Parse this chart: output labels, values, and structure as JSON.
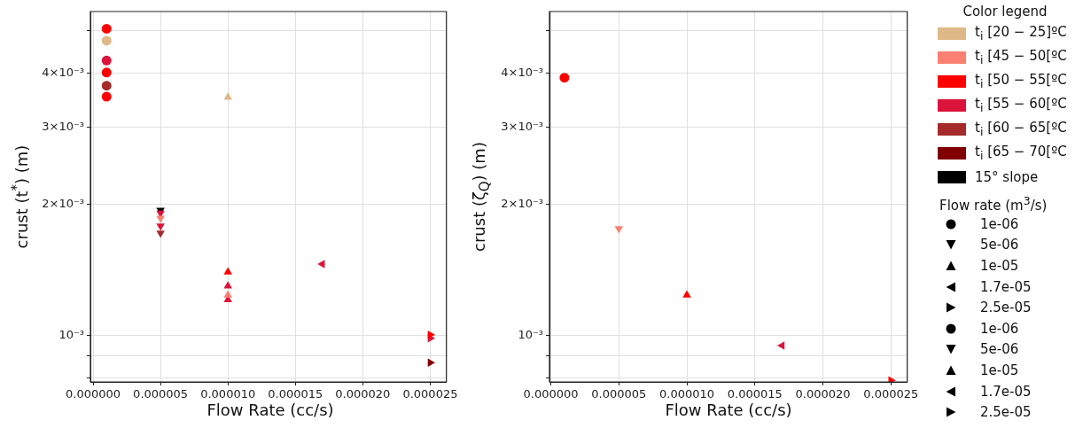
{
  "chart_data": [
    {
      "type": "scatter",
      "xlabel": "Flow Rate (cc/s)",
      "ylabel": "crust (t$^{*}$) (m)",
      "log": "y",
      "grid": true,
      "legend": "right",
      "legend_title": "Color legend",
      "xlim": [
        -2e-07,
        2.62e-05
      ],
      "xticks": [
        {
          "value": 0,
          "label": "0.000000"
        },
        {
          "value": 5e-06,
          "label": "0.000005"
        },
        {
          "value": 1e-05,
          "label": "0.000010"
        },
        {
          "value": 1.5e-05,
          "label": "0.000015"
        },
        {
          "value": 2e-05,
          "label": "0.000020"
        },
        {
          "value": 2.5e-05,
          "label": "0.000025"
        }
      ],
      "ylim": [
        0.000784,
        0.00553
      ],
      "yticks": [
        {
          "value": 0.0008,
          "label": null
        },
        {
          "value": 0.0009,
          "label": null
        },
        {
          "value": 0.001,
          "label": "10⁻³"
        },
        {
          "value": 0.002,
          "label": "2×10⁻³"
        },
        {
          "value": 0.003,
          "label": "3×10⁻³"
        },
        {
          "value": 0.004,
          "label": "4×10⁻³"
        },
        {
          "value": 0.005,
          "label": null
        }
      ],
      "annotations": [
        "Flow rate (m$^{3}$/s)",
        "1e-06",
        "5e-06",
        "1e-05",
        "1.7e-05",
        "2.5e-05",
        "1e-06",
        "5e-06",
        "1e-05",
        "1.7e-05",
        "2.5e-05"
      ],
      "series": [
        {
          "name": "t$_{i}$ [20 − 25]ºC",
          "color": "#deb887",
          "marker": "circle",
          "x": [
            1e-06
          ],
          "values": [
            0.00474
          ]
        },
        {
          "color": "#deb887",
          "marker": "triangle",
          "x": [
            1e-05
          ],
          "values": [
            0.00352
          ]
        },
        {
          "name": "t$_{i}$ [45 − 50[ºC",
          "color": "#fa8072",
          "marker": "triangle-down",
          "x": [
            5e-06
          ],
          "values": [
            0.00186
          ]
        },
        {
          "color": "#fa8072",
          "marker": "triangle",
          "x": [
            1e-05
          ],
          "values": [
            0.00124
          ]
        },
        {
          "name": "t$_{i}$ [50 − 55[ºC",
          "color": "#ff0000",
          "marker": "circle",
          "x": [
            1e-06,
            1e-06,
            1e-06
          ],
          "values": [
            0.00505,
            0.00401,
            0.00353
          ]
        },
        {
          "color": "#ff0000",
          "marker": "triangle",
          "x": [
            1e-05
          ],
          "values": [
            0.0014
          ]
        },
        {
          "color": "#ff0000",
          "marker": "triangle-right",
          "x": [
            2.5e-05
          ],
          "values": [
            0.001006
          ]
        },
        {
          "name": "t$_{i}$ [55 − 60[ºC",
          "color": "#dc143c",
          "marker": "circle",
          "x": [
            1e-06
          ],
          "values": [
            0.00427
          ]
        },
        {
          "color": "#dc143c",
          "marker": "triangle-down",
          "x": [
            5e-06,
            5e-06
          ],
          "values": [
            0.00191,
            0.001785
          ]
        },
        {
          "color": "#dc143c",
          "marker": "triangle",
          "x": [
            1e-05,
            1e-05
          ],
          "values": [
            0.0013,
            0.00121
          ]
        },
        {
          "color": "#dc143c",
          "marker": "triangle-left",
          "x": [
            1.7e-05
          ],
          "values": [
            0.00146
          ]
        },
        {
          "color": "#dc143c",
          "marker": "triangle-right",
          "x": [
            2.5e-05
          ],
          "values": [
            0.000987
          ]
        },
        {
          "name": "t$_{i}$ [60 − 65[ºC",
          "color": "#a52a2a",
          "marker": "circle",
          "x": [
            1e-06
          ],
          "values": [
            0.00374
          ]
        },
        {
          "color": "#a52a2a",
          "marker": "triangle-down",
          "x": [
            5e-06
          ],
          "values": [
            0.00172
          ]
        },
        {
          "name": "t$_{i}$ [65 − 70[ºC",
          "color": "#800000",
          "marker": "triangle-right",
          "x": [
            2.5e-05
          ],
          "values": [
            0.000868
          ]
        },
        {
          "name": "15° slope",
          "color": "#000000",
          "marker": "triangle-down",
          "x": [
            5e-06
          ],
          "values": [
            0.00194
          ]
        }
      ]
    },
    {
      "type": "scatter",
      "xlabel": "Flow Rate (cc/s)",
      "ylabel": "crust (ζ$_{Q}$) (m)",
      "log": "y",
      "grid": true,
      "xlim": [
        -1e-07,
        2.62e-05
      ],
      "xticks": [
        {
          "value": 0,
          "label": "0.000000"
        },
        {
          "value": 5e-06,
          "label": "0.000005"
        },
        {
          "value": 1e-05,
          "label": "0.000010"
        },
        {
          "value": 1.5e-05,
          "label": "0.000015"
        },
        {
          "value": 2e-05,
          "label": "0.000020"
        },
        {
          "value": 2.5e-05,
          "label": "0.000025"
        }
      ],
      "ylim": [
        0.000784,
        0.00553
      ],
      "yticks": [
        {
          "value": 0.0008,
          "label": null
        },
        {
          "value": 0.0009,
          "label": null
        },
        {
          "value": 0.001,
          "label": "10⁻³"
        },
        {
          "value": 0.002,
          "label": "2×10⁻³"
        },
        {
          "value": 0.003,
          "label": "3×10⁻³"
        },
        {
          "value": 0.004,
          "label": "4×10⁻³"
        },
        {
          "value": 0.005,
          "label": null
        }
      ],
      "series": [
        {
          "color": "#ff0000",
          "marker": "circle",
          "x": [
            1e-06
          ],
          "values": [
            0.0039
          ]
        },
        {
          "color": "#fa8072",
          "marker": "triangle-down",
          "x": [
            5e-06
          ],
          "values": [
            0.00176
          ]
        },
        {
          "color": "#ff0000",
          "marker": "triangle",
          "x": [
            1e-05
          ],
          "values": [
            0.00124
          ]
        },
        {
          "color": "#dc143c",
          "marker": "triangle-left",
          "x": [
            1.7e-05
          ],
          "values": [
            0.00095
          ]
        },
        {
          "color": "#ff0000",
          "marker": "triangle-right",
          "x": [
            2.5e-05
          ],
          "values": [
            0.00079
          ]
        }
      ]
    }
  ]
}
